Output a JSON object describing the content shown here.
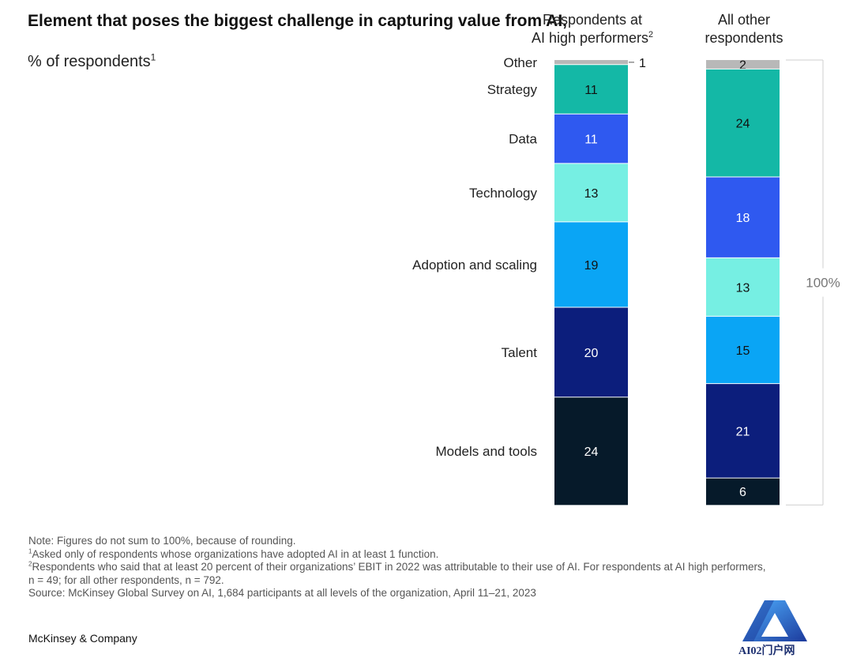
{
  "chart_data": {
    "type": "bar",
    "stacked": true,
    "title": "Element that poses the biggest challenge in capturing value from AI,",
    "subtitle": "% of respondents",
    "subtitle_footnote": "1",
    "categories": [
      "Respondents at AI high performers",
      "All other respondents"
    ],
    "column_headers": [
      {
        "line1": "Respondents at",
        "line2": "AI high performers",
        "footnote": "2"
      },
      {
        "line1": "All other",
        "line2": "respondents",
        "footnote": ""
      }
    ],
    "series": [
      {
        "name": "Other",
        "color": "#b8b8b8",
        "label_color": "#111111",
        "values": [
          1,
          2
        ]
      },
      {
        "name": "Strategy",
        "color": "#14b8a6",
        "label_color": "#111111",
        "values": [
          11,
          24
        ]
      },
      {
        "name": "Data",
        "color": "#2f59f0",
        "label_color": "#ffffff",
        "values": [
          11,
          18
        ]
      },
      {
        "name": "Technology",
        "color": "#76efe3",
        "label_color": "#111111",
        "values": [
          13,
          13
        ]
      },
      {
        "name": "Adoption and scaling",
        "color": "#0aa5f5",
        "label_color": "#111111",
        "values": [
          19,
          15
        ]
      },
      {
        "name": "Talent",
        "color": "#0c1e7c",
        "label_color": "#ffffff",
        "values": [
          20,
          21
        ]
      },
      {
        "name": "Models and tools",
        "color": "#061a2a",
        "label_color": "#ffffff",
        "values": [
          24,
          6
        ]
      }
    ],
    "total_label": "100%",
    "ylim": [
      0,
      100
    ]
  },
  "notes": [
    {
      "sup": "",
      "text": "Note: Figures do not sum to 100%, because of rounding."
    },
    {
      "sup": "1",
      "text": "Asked only of respondents whose organizations have adopted AI in at least 1 function."
    },
    {
      "sup": "2",
      "text": "Respondents who said that at least 20 percent of their organizations’ EBIT in 2022 was attributable to their use of AI. For respondents at AI high performers,"
    },
    {
      "sup": "",
      "text": " n = 49; for all other respondents, n = 792."
    },
    {
      "sup": "",
      "text": " Source: McKinsey Global Survey on AI, 1,684 participants at all levels of the organization, April 11–21, 2023"
    }
  ],
  "brand": "McKinsey & Company",
  "watermark": "AI02门户网"
}
